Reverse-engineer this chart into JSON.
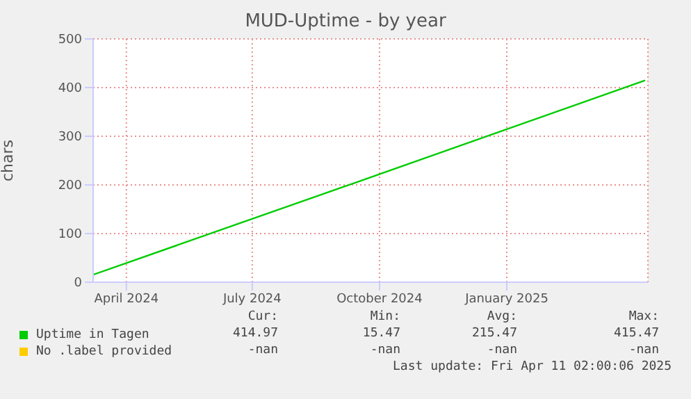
{
  "chart_data": {
    "type": "line",
    "title": "MUD-Uptime - by year",
    "ylabel": "chars",
    "x": [
      "2024-03-08",
      "2024-09-08",
      "2025-04-11"
    ],
    "series": [
      {
        "name": "Uptime in Tagen",
        "color": "#00cc00",
        "values": [
          15.47,
          199,
          414.97
        ]
      },
      {
        "name": "No .label provided",
        "color": "#ffcc00",
        "values": [
          null,
          null,
          null
        ]
      }
    ],
    "xlim": [
      "2024-03-08",
      "2025-04-13"
    ],
    "xticks": [
      {
        "value": "2024-04-01",
        "label": "April 2024"
      },
      {
        "value": "2024-07-01",
        "label": "July 2024"
      },
      {
        "value": "2024-10-01",
        "label": "October 2024"
      },
      {
        "value": "2025-01-01",
        "label": "January 2025"
      }
    ],
    "ylim": [
      0,
      500
    ],
    "yticks": [
      0,
      100,
      200,
      300,
      400,
      500
    ],
    "grid": true,
    "legend": "bottom left",
    "marker": "none",
    "line_style": "solid",
    "annotations": [
      "Cur:",
      "Min:",
      "Avg:",
      "Max:",
      "414.97",
      "15.47",
      "215.47",
      "415.47",
      "-nan",
      "-nan",
      "-nan",
      "-nan",
      "Last update: Fri Apr 11 02:00:06 2025"
    ]
  }
}
